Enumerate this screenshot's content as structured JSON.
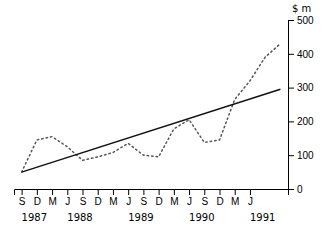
{
  "chart_data": {
    "type": "line",
    "y_label": "$ m",
    "xlim": [
      -0.5,
      17.5
    ],
    "xticks": [
      {
        "value": 0,
        "label": "S"
      },
      {
        "value": 1,
        "label": "D"
      },
      {
        "value": 2,
        "label": "M"
      },
      {
        "value": 3,
        "label": "J"
      },
      {
        "value": 4,
        "label": "S"
      },
      {
        "value": 5,
        "label": "D"
      },
      {
        "value": 6,
        "label": "M"
      },
      {
        "value": 7,
        "label": "J"
      },
      {
        "value": 8,
        "label": "S"
      },
      {
        "value": 9,
        "label": "D"
      },
      {
        "value": 10,
        "label": "M"
      },
      {
        "value": 11,
        "label": "J"
      },
      {
        "value": 12,
        "label": "S"
      },
      {
        "value": 13,
        "label": "D"
      },
      {
        "value": 14,
        "label": "M"
      },
      {
        "value": 15,
        "label": "J"
      }
    ],
    "ylim": [
      0,
      500
    ],
    "yticks": [
      0,
      100,
      200,
      300,
      400,
      500
    ],
    "annotations": [
      {
        "text": "1987",
        "x": 0
      },
      {
        "text": "1988",
        "x": 3
      },
      {
        "text": "1989",
        "x": 7
      },
      {
        "text": "1990",
        "x": 11
      },
      {
        "text": "1991",
        "x": 15
      }
    ],
    "series": [
      {
        "color": "#555555",
        "line_style": "dotted",
        "x": [
          0,
          1,
          2,
          3,
          4,
          5,
          6,
          7,
          8,
          9,
          10,
          11,
          12,
          13,
          14,
          15,
          16,
          17
        ],
        "values": [
          50,
          145,
          155,
          125,
          85,
          95,
          108,
          135,
          100,
          95,
          178,
          205,
          138,
          145,
          265,
          320,
          390,
          430
        ]
      },
      {
        "color": "#111111",
        "line_style": "solid",
        "x": [
          0,
          17
        ],
        "values": [
          50,
          295
        ]
      }
    ],
    "grid": false
  }
}
